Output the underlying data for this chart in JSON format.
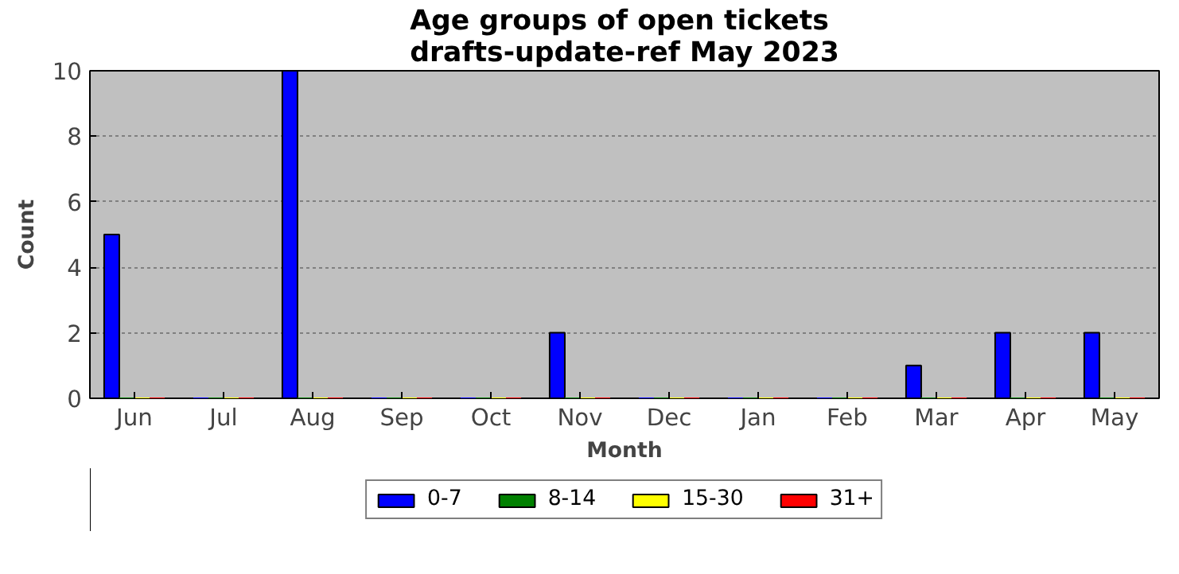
{
  "chart_data": {
    "type": "bar",
    "title": "Age groups of open tickets\ndrafts-update-ref May 2023",
    "xlabel": "Month",
    "ylabel": "Count",
    "categories": [
      "Jun",
      "Jul",
      "Aug",
      "Sep",
      "Oct",
      "Nov",
      "Dec",
      "Jan",
      "Feb",
      "Mar",
      "Apr",
      "May"
    ],
    "series": [
      {
        "name": "0-7",
        "color": "#0000ff",
        "values": [
          5,
          0,
          10,
          0,
          0,
          2,
          0,
          0,
          0,
          1,
          2,
          2
        ]
      },
      {
        "name": "8-14",
        "color": "#008000",
        "values": [
          0,
          0,
          0,
          0,
          0,
          0,
          0,
          0,
          0,
          0,
          0,
          0
        ]
      },
      {
        "name": "15-30",
        "color": "#ffff00",
        "values": [
          0,
          0,
          0,
          0,
          0,
          0,
          0,
          0,
          0,
          0,
          0,
          0
        ]
      },
      {
        "name": "31+",
        "color": "#ff0000",
        "values": [
          0,
          0,
          0,
          0,
          0,
          0,
          0,
          0,
          0,
          0,
          0,
          0
        ]
      }
    ],
    "ylim": [
      0,
      10
    ],
    "yticks": [
      0,
      2,
      4,
      6,
      8,
      10
    ],
    "grid": "y",
    "legend": "bottom"
  }
}
